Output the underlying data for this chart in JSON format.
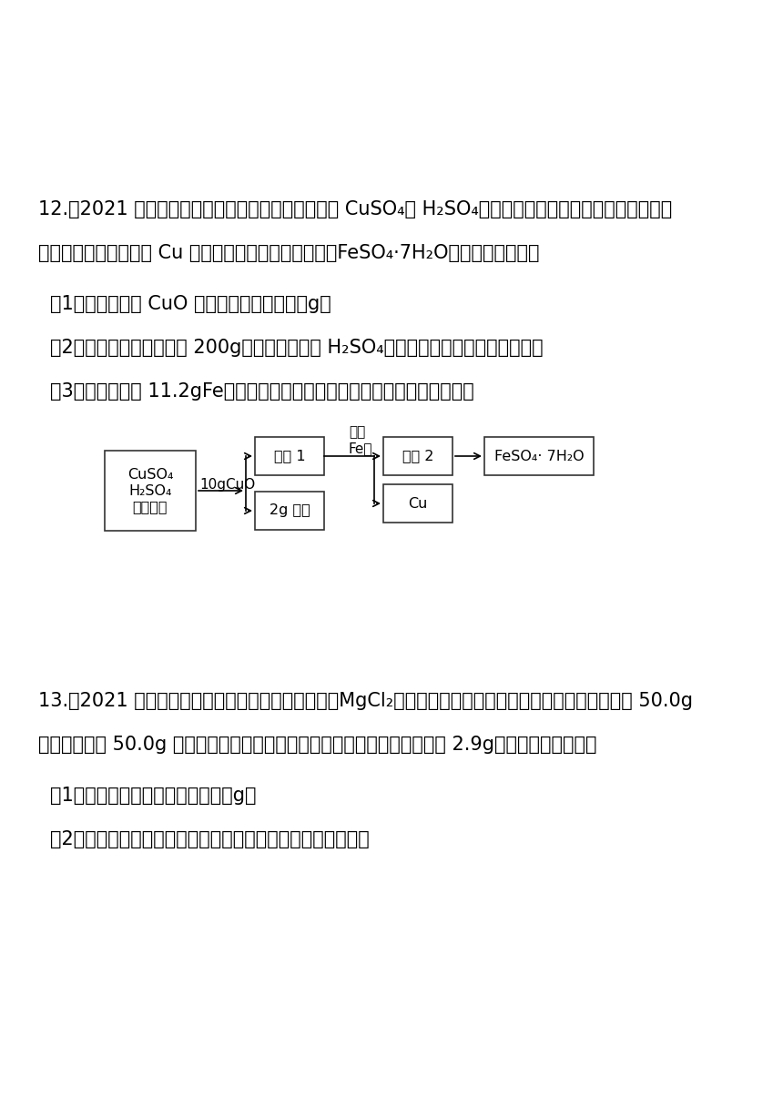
{
  "bg_color": "#ffffff",
  "text_color": "#000000",
  "figsize": [
    8.6,
    12.16
  ],
  "dpi": 100,
  "q12_line1": "12.（2021 湖南株洲）某工厂废水经初步处理后可得 CuSO₄和 H₂SO₄的混合溶液，华雪同学设计实验模拟后",
  "q12_line2": "续处理过程，并得到了 Cu 和另一种重要化工原料绿矾（FeSO₄·7H₂O）。其过程如下：",
  "q12_q1": "（1）参加反应的 CuO 质量为＿＿＿＿＿＿＿g。",
  "q12_q2": "（2）若原混合溶液质量为 200g，求混合溶液中 H₂SO₄的质量分数（写出计算过程）。",
  "q12_q3": "（3）若反应消耗 11.2gFe，求理论上可得到绿矾的质量（写出计算过程）。",
  "q13_line1": "13.（2021 四川广安）某氯化钠溶液中含有氯化镁（MgCl₂），学习小组为测定其中氯化镁的质量分数，在 50.0g",
  "q13_line2": "该溶液中加入 50.0g 氢氧化钠溶液恰好完全反应，经测定生成沉淀的质量为 2.9g。请回答下列问题：",
  "q13_q1": "（1）反应后溶液的质量为＿＿＿＿g。",
  "q13_q2": "（2）求原氯化钠溶液中氯化镁的质量分数（写出计算过程）。",
  "box1_label": "CuSO₄\nH₂SO₄\n混合溶液",
  "box2_label": "滤液 1",
  "box3_label": "2g 滤渣",
  "box4_label": "滤液 2",
  "box5_label": "Cu",
  "box6_label": "FeSO₄· 7H₂O",
  "label_10gCuO": "10gCuO",
  "label_shuliang": "适量",
  "label_fefen": "Fe粉"
}
